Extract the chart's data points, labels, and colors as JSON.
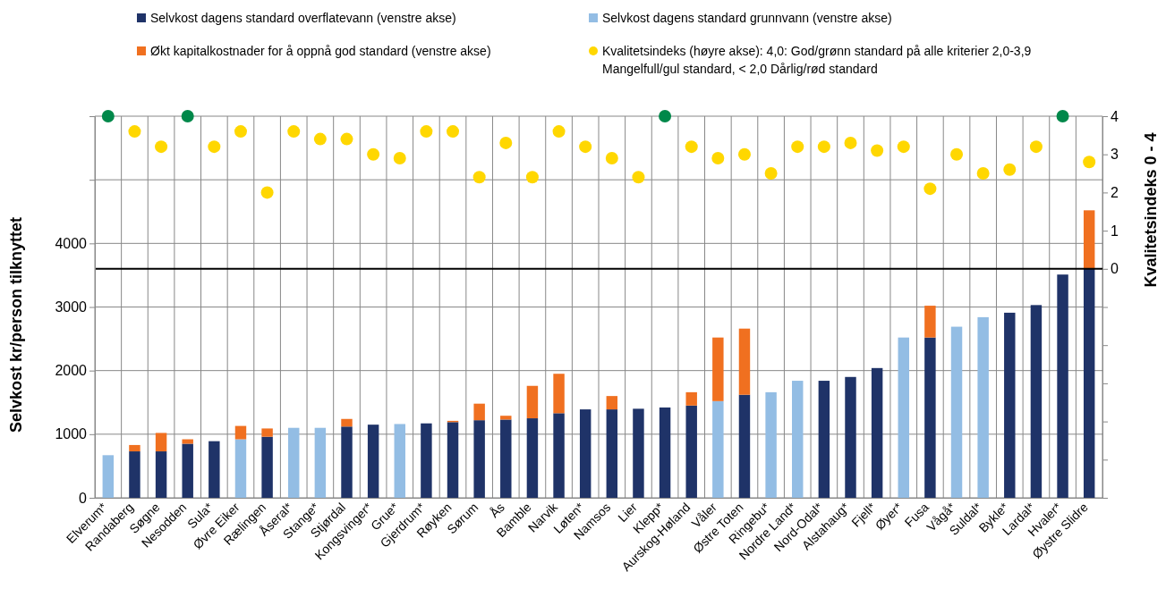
{
  "chart_data": {
    "type": "bar",
    "stacked": true,
    "legend": "top",
    "grid": true,
    "ylabel": "Selvkost kr/person tilknyttet",
    "y2label": "Kvalitetsindeks 0 - 4",
    "categories": [
      "Elverum*",
      "Randaberg",
      "Søgne",
      "Nesodden",
      "Sula*",
      "Øvre Eiker",
      "Rælingen",
      "Åseral*",
      "Stange*",
      "Stjørdal",
      "Kongsvinger*",
      "Grue*",
      "Gjerdrum*",
      "Røyken",
      "Sørum",
      "Ås",
      "Bamble",
      "Narvik",
      "Løten*",
      "Namsos",
      "Lier",
      "Klepp*",
      "Aurskog-Høland",
      "Våler",
      "Østre Toten",
      "Ringebu*",
      "Nordre Land*",
      "Nord-Odal*",
      "Alstahaug*",
      "Fjell*",
      "Øyer*",
      "Fusa",
      "Vågå*",
      "Suldal*",
      "Bykle*",
      "Lardal*",
      "Hvaler*",
      "Øystre Slidre"
    ],
    "ylim": [
      0,
      6000
    ],
    "yticks": [
      0,
      1000,
      2000,
      3000,
      4000,
      {
        "value": 5000,
        "label": null
      },
      {
        "value": 6000,
        "label": null
      }
    ],
    "y2lim": [
      -6,
      4
    ],
    "y2ticks": [
      {
        "value": -6,
        "label": null
      },
      {
        "value": -5,
        "label": null
      },
      {
        "value": -4,
        "label": null
      },
      {
        "value": -3,
        "label": null
      },
      {
        "value": -2,
        "label": null
      },
      {
        "value": -1,
        "label": null
      },
      0,
      1,
      2,
      3,
      4
    ],
    "ref_lines": [
      {
        "axis": "y2",
        "value": 0,
        "color": "#000000"
      }
    ],
    "series": [
      {
        "name": "Selvkost dagens standard overflatevann (venstre akse)",
        "color": "#1f3368",
        "values": [
          null,
          730,
          730,
          850,
          890,
          null,
          960,
          null,
          null,
          1120,
          1150,
          null,
          1170,
          1190,
          1220,
          1230,
          1250,
          1330,
          1390,
          1390,
          1400,
          1420,
          1450,
          null,
          1620,
          null,
          null,
          1840,
          1900,
          2040,
          null,
          2520,
          null,
          null,
          2910,
          3030,
          3510,
          3600
        ]
      },
      {
        "name": "Selvkost dagens standard grunnvann (venstre akse)",
        "color": "#93bde4",
        "values": [
          670,
          null,
          null,
          null,
          null,
          920,
          null,
          1100,
          1100,
          null,
          null,
          1160,
          null,
          null,
          null,
          null,
          null,
          null,
          null,
          null,
          null,
          null,
          null,
          1520,
          null,
          1660,
          1840,
          null,
          null,
          null,
          2520,
          null,
          2690,
          2840,
          null,
          null,
          null,
          null
        ]
      },
      {
        "name": "Økt kapitalkostnader for å oppnå god standard (venstre akse)",
        "color": "#f07020",
        "values": [
          null,
          100,
          290,
          70,
          null,
          210,
          130,
          null,
          null,
          120,
          null,
          null,
          null,
          20,
          260,
          60,
          510,
          620,
          null,
          210,
          null,
          null,
          210,
          1000,
          1040,
          null,
          null,
          null,
          null,
          null,
          null,
          500,
          null,
          null,
          null,
          null,
          null,
          920
        ]
      },
      {
        "name": "Kvalitetsindeks (høyre akse): 4,0: God/grønn standard på alle kriterier 2,0-3,9 Mangelfull/gul standard, < 2,0 Dårlig/rød standard",
        "type": "scatter",
        "axis": "y2",
        "marker": "circle",
        "color": "#ffd700",
        "colors": [
          "#00884a",
          "#ffd700",
          "#ffd700",
          "#00884a",
          "#ffd700",
          "#ffd700",
          "#ffd700",
          "#ffd700",
          "#ffd700",
          "#ffd700",
          "#ffd700",
          "#ffd700",
          "#ffd700",
          "#ffd700",
          "#ffd700",
          "#ffd700",
          "#ffd700",
          "#ffd700",
          "#ffd700",
          "#ffd700",
          "#ffd700",
          "#00884a",
          "#ffd700",
          "#ffd700",
          "#ffd700",
          "#ffd700",
          "#ffd700",
          "#ffd700",
          "#ffd700",
          "#ffd700",
          "#ffd700",
          "#ffd700",
          "#ffd700",
          "#ffd700",
          "#ffd700",
          "#ffd700",
          "#00884a",
          "#ffd700"
        ],
        "values": [
          4,
          3.6,
          3.2,
          4,
          3.2,
          3.6,
          2.0,
          3.6,
          3.4,
          3.4,
          3.0,
          2.9,
          3.6,
          3.6,
          2.4,
          3.3,
          2.4,
          3.6,
          3.2,
          2.9,
          2.4,
          4,
          3.2,
          2.9,
          3.0,
          2.5,
          3.2,
          3.2,
          3.3,
          3.1,
          3.2,
          2.1,
          3.0,
          2.5,
          2.6,
          3.2,
          4,
          2.8
        ]
      }
    ]
  }
}
